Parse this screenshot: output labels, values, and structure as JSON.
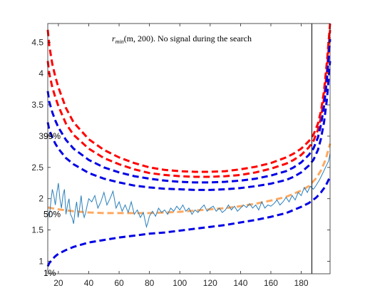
{
  "chart_data": {
    "type": "line",
    "title_parts": {
      "r": "r",
      "sub": "min",
      "rest": "(m, 200). No signal during the search"
    },
    "xlim": [
      13,
      199
    ],
    "ylim": [
      0.8,
      4.8
    ],
    "xticks": [
      20,
      40,
      60,
      80,
      100,
      120,
      140,
      160,
      180
    ],
    "yticks": [
      1,
      1.5,
      2,
      2.5,
      3,
      3.5,
      4,
      4.5
    ],
    "ytick_labels": [
      "1",
      "1.5",
      "2",
      "2.5",
      "3",
      "3.5",
      "4",
      "4.5"
    ],
    "vline_x": 187,
    "percentile_labels": [
      {
        "text": "99%",
        "y": 3.0
      },
      {
        "text": "50%",
        "y": 1.75
      },
      {
        "text": "1%",
        "y": 0.78
      }
    ],
    "series": [
      {
        "role": "upper-red-outer",
        "color": "#ff0000",
        "dash": true,
        "x": [
          13,
          14,
          16,
          18,
          20,
          25,
          30,
          40,
          50,
          60,
          70,
          80,
          90,
          100,
          110,
          120,
          130,
          140,
          150,
          160,
          170,
          175,
          180,
          185,
          188,
          191,
          193,
          195,
          197,
          199
        ],
        "y": [
          4.7,
          4.45,
          4.15,
          3.95,
          3.78,
          3.45,
          3.22,
          2.95,
          2.78,
          2.66,
          2.57,
          2.5,
          2.46,
          2.44,
          2.43,
          2.43,
          2.44,
          2.47,
          2.51,
          2.57,
          2.66,
          2.72,
          2.8,
          2.92,
          3.02,
          3.2,
          3.4,
          3.72,
          4.2,
          4.8
        ]
      },
      {
        "role": "upper-red-inner",
        "color": "#ff0000",
        "dash": true,
        "x": [
          13,
          14,
          16,
          18,
          20,
          25,
          30,
          40,
          50,
          60,
          70,
          80,
          90,
          100,
          110,
          120,
          130,
          140,
          150,
          160,
          170,
          175,
          180,
          185,
          188,
          191,
          193,
          195,
          197,
          199
        ],
        "y": [
          4.2,
          4.0,
          3.78,
          3.62,
          3.48,
          3.2,
          3.02,
          2.8,
          2.65,
          2.55,
          2.47,
          2.41,
          2.38,
          2.36,
          2.35,
          2.35,
          2.36,
          2.38,
          2.42,
          2.48,
          2.56,
          2.62,
          2.7,
          2.82,
          2.92,
          3.1,
          3.3,
          3.6,
          4.05,
          4.7
        ]
      },
      {
        "role": "upper-blue-outer",
        "color": "#0000e6",
        "dash": true,
        "x": [
          13,
          14,
          16,
          18,
          20,
          25,
          30,
          40,
          50,
          60,
          70,
          80,
          90,
          100,
          110,
          120,
          130,
          140,
          150,
          160,
          170,
          175,
          180,
          185,
          188,
          191,
          193,
          195,
          197,
          199
        ],
        "y": [
          3.72,
          3.55,
          3.38,
          3.25,
          3.14,
          2.94,
          2.8,
          2.62,
          2.5,
          2.42,
          2.36,
          2.32,
          2.29,
          2.27,
          2.26,
          2.26,
          2.27,
          2.29,
          2.32,
          2.37,
          2.44,
          2.5,
          2.58,
          2.7,
          2.8,
          2.98,
          3.18,
          3.48,
          3.92,
          4.55
        ]
      },
      {
        "role": "upper-blue-inner",
        "color": "#0000e6",
        "dash": true,
        "x": [
          13,
          14,
          16,
          18,
          20,
          25,
          30,
          40,
          50,
          60,
          70,
          80,
          90,
          100,
          110,
          120,
          130,
          140,
          150,
          160,
          170,
          175,
          180,
          185,
          188,
          191,
          193,
          195,
          197,
          199
        ],
        "y": [
          3.22,
          3.1,
          2.98,
          2.88,
          2.8,
          2.65,
          2.55,
          2.41,
          2.32,
          2.26,
          2.21,
          2.18,
          2.16,
          2.15,
          2.14,
          2.14,
          2.15,
          2.17,
          2.2,
          2.24,
          2.3,
          2.35,
          2.42,
          2.53,
          2.62,
          2.78,
          2.96,
          3.22,
          3.6,
          4.2
        ]
      },
      {
        "role": "median-orange",
        "color": "#ffa860",
        "dash": true,
        "x": [
          13,
          20,
          30,
          40,
          50,
          60,
          70,
          80,
          90,
          100,
          110,
          120,
          130,
          140,
          150,
          160,
          170,
          180,
          185,
          190,
          193,
          196,
          199
        ],
        "y": [
          1.86,
          1.83,
          1.8,
          1.78,
          1.77,
          1.77,
          1.77,
          1.77,
          1.78,
          1.79,
          1.81,
          1.83,
          1.85,
          1.88,
          1.92,
          1.97,
          2.03,
          2.13,
          2.2,
          2.33,
          2.45,
          2.62,
          2.88
        ]
      },
      {
        "role": "lower-blue",
        "color": "#0000e6",
        "dash": true,
        "x": [
          13,
          14,
          16,
          18,
          20,
          25,
          30,
          40,
          50,
          60,
          70,
          80,
          90,
          100,
          110,
          120,
          130,
          140,
          150,
          160,
          170,
          180,
          185,
          190,
          193,
          196,
          199
        ],
        "y": [
          0.92,
          0.97,
          1.03,
          1.08,
          1.12,
          1.18,
          1.23,
          1.3,
          1.34,
          1.38,
          1.41,
          1.44,
          1.46,
          1.49,
          1.52,
          1.55,
          1.58,
          1.62,
          1.66,
          1.71,
          1.77,
          1.87,
          1.93,
          2.02,
          2.1,
          2.2,
          2.35
        ]
      },
      {
        "role": "observed-signal",
        "color": "#2a7fba",
        "dash": false,
        "x": [
          14,
          15,
          16,
          17,
          18,
          19,
          20,
          21,
          22,
          23,
          24,
          25,
          26,
          27,
          28,
          29,
          30,
          31,
          32,
          33,
          34,
          35,
          36,
          37,
          38,
          39,
          40,
          42,
          44,
          46,
          48,
          50,
          52,
          54,
          56,
          58,
          60,
          62,
          64,
          66,
          68,
          70,
          72,
          74,
          76,
          78,
          79,
          80,
          82,
          84,
          86,
          88,
          90,
          92,
          94,
          96,
          98,
          100,
          102,
          104,
          106,
          108,
          110,
          112,
          114,
          116,
          118,
          120,
          122,
          124,
          126,
          128,
          130,
          132,
          134,
          136,
          138,
          140,
          142,
          144,
          146,
          148,
          150,
          152,
          154,
          156,
          158,
          160,
          162,
          164,
          166,
          168,
          170,
          172,
          174,
          176,
          178,
          180,
          182,
          184,
          186,
          188,
          190,
          192,
          194,
          196,
          198,
          199
        ],
        "y": [
          1.7,
          1.95,
          2.15,
          2.05,
          1.9,
          2.1,
          2.25,
          2.0,
          1.85,
          2.05,
          2.15,
          1.75,
          1.9,
          2.0,
          1.75,
          1.7,
          1.6,
          1.8,
          1.95,
          1.7,
          1.85,
          2.05,
          1.8,
          1.7,
          1.78,
          1.9,
          2.0,
          1.95,
          2.05,
          1.85,
          1.95,
          2.1,
          1.9,
          2.0,
          2.12,
          1.85,
          1.95,
          1.8,
          1.9,
          1.78,
          1.95,
          1.75,
          1.82,
          1.7,
          1.78,
          1.55,
          1.62,
          1.72,
          1.8,
          1.72,
          1.85,
          1.78,
          1.82,
          1.75,
          1.85,
          1.8,
          1.88,
          1.82,
          1.9,
          1.8,
          1.85,
          1.75,
          1.82,
          1.78,
          1.85,
          1.9,
          1.8,
          1.85,
          1.88,
          1.8,
          1.85,
          1.78,
          1.82,
          1.9,
          1.82,
          1.88,
          1.8,
          1.85,
          1.9,
          1.86,
          1.92,
          1.85,
          1.9,
          1.82,
          1.95,
          1.85,
          1.9,
          1.88,
          1.92,
          1.98,
          1.9,
          1.95,
          2.02,
          1.95,
          2.05,
          1.98,
          2.1,
          2.05,
          2.18,
          2.1,
          2.2,
          2.15,
          2.22,
          2.3,
          2.4,
          2.5,
          2.6,
          2.72
        ]
      }
    ]
  }
}
